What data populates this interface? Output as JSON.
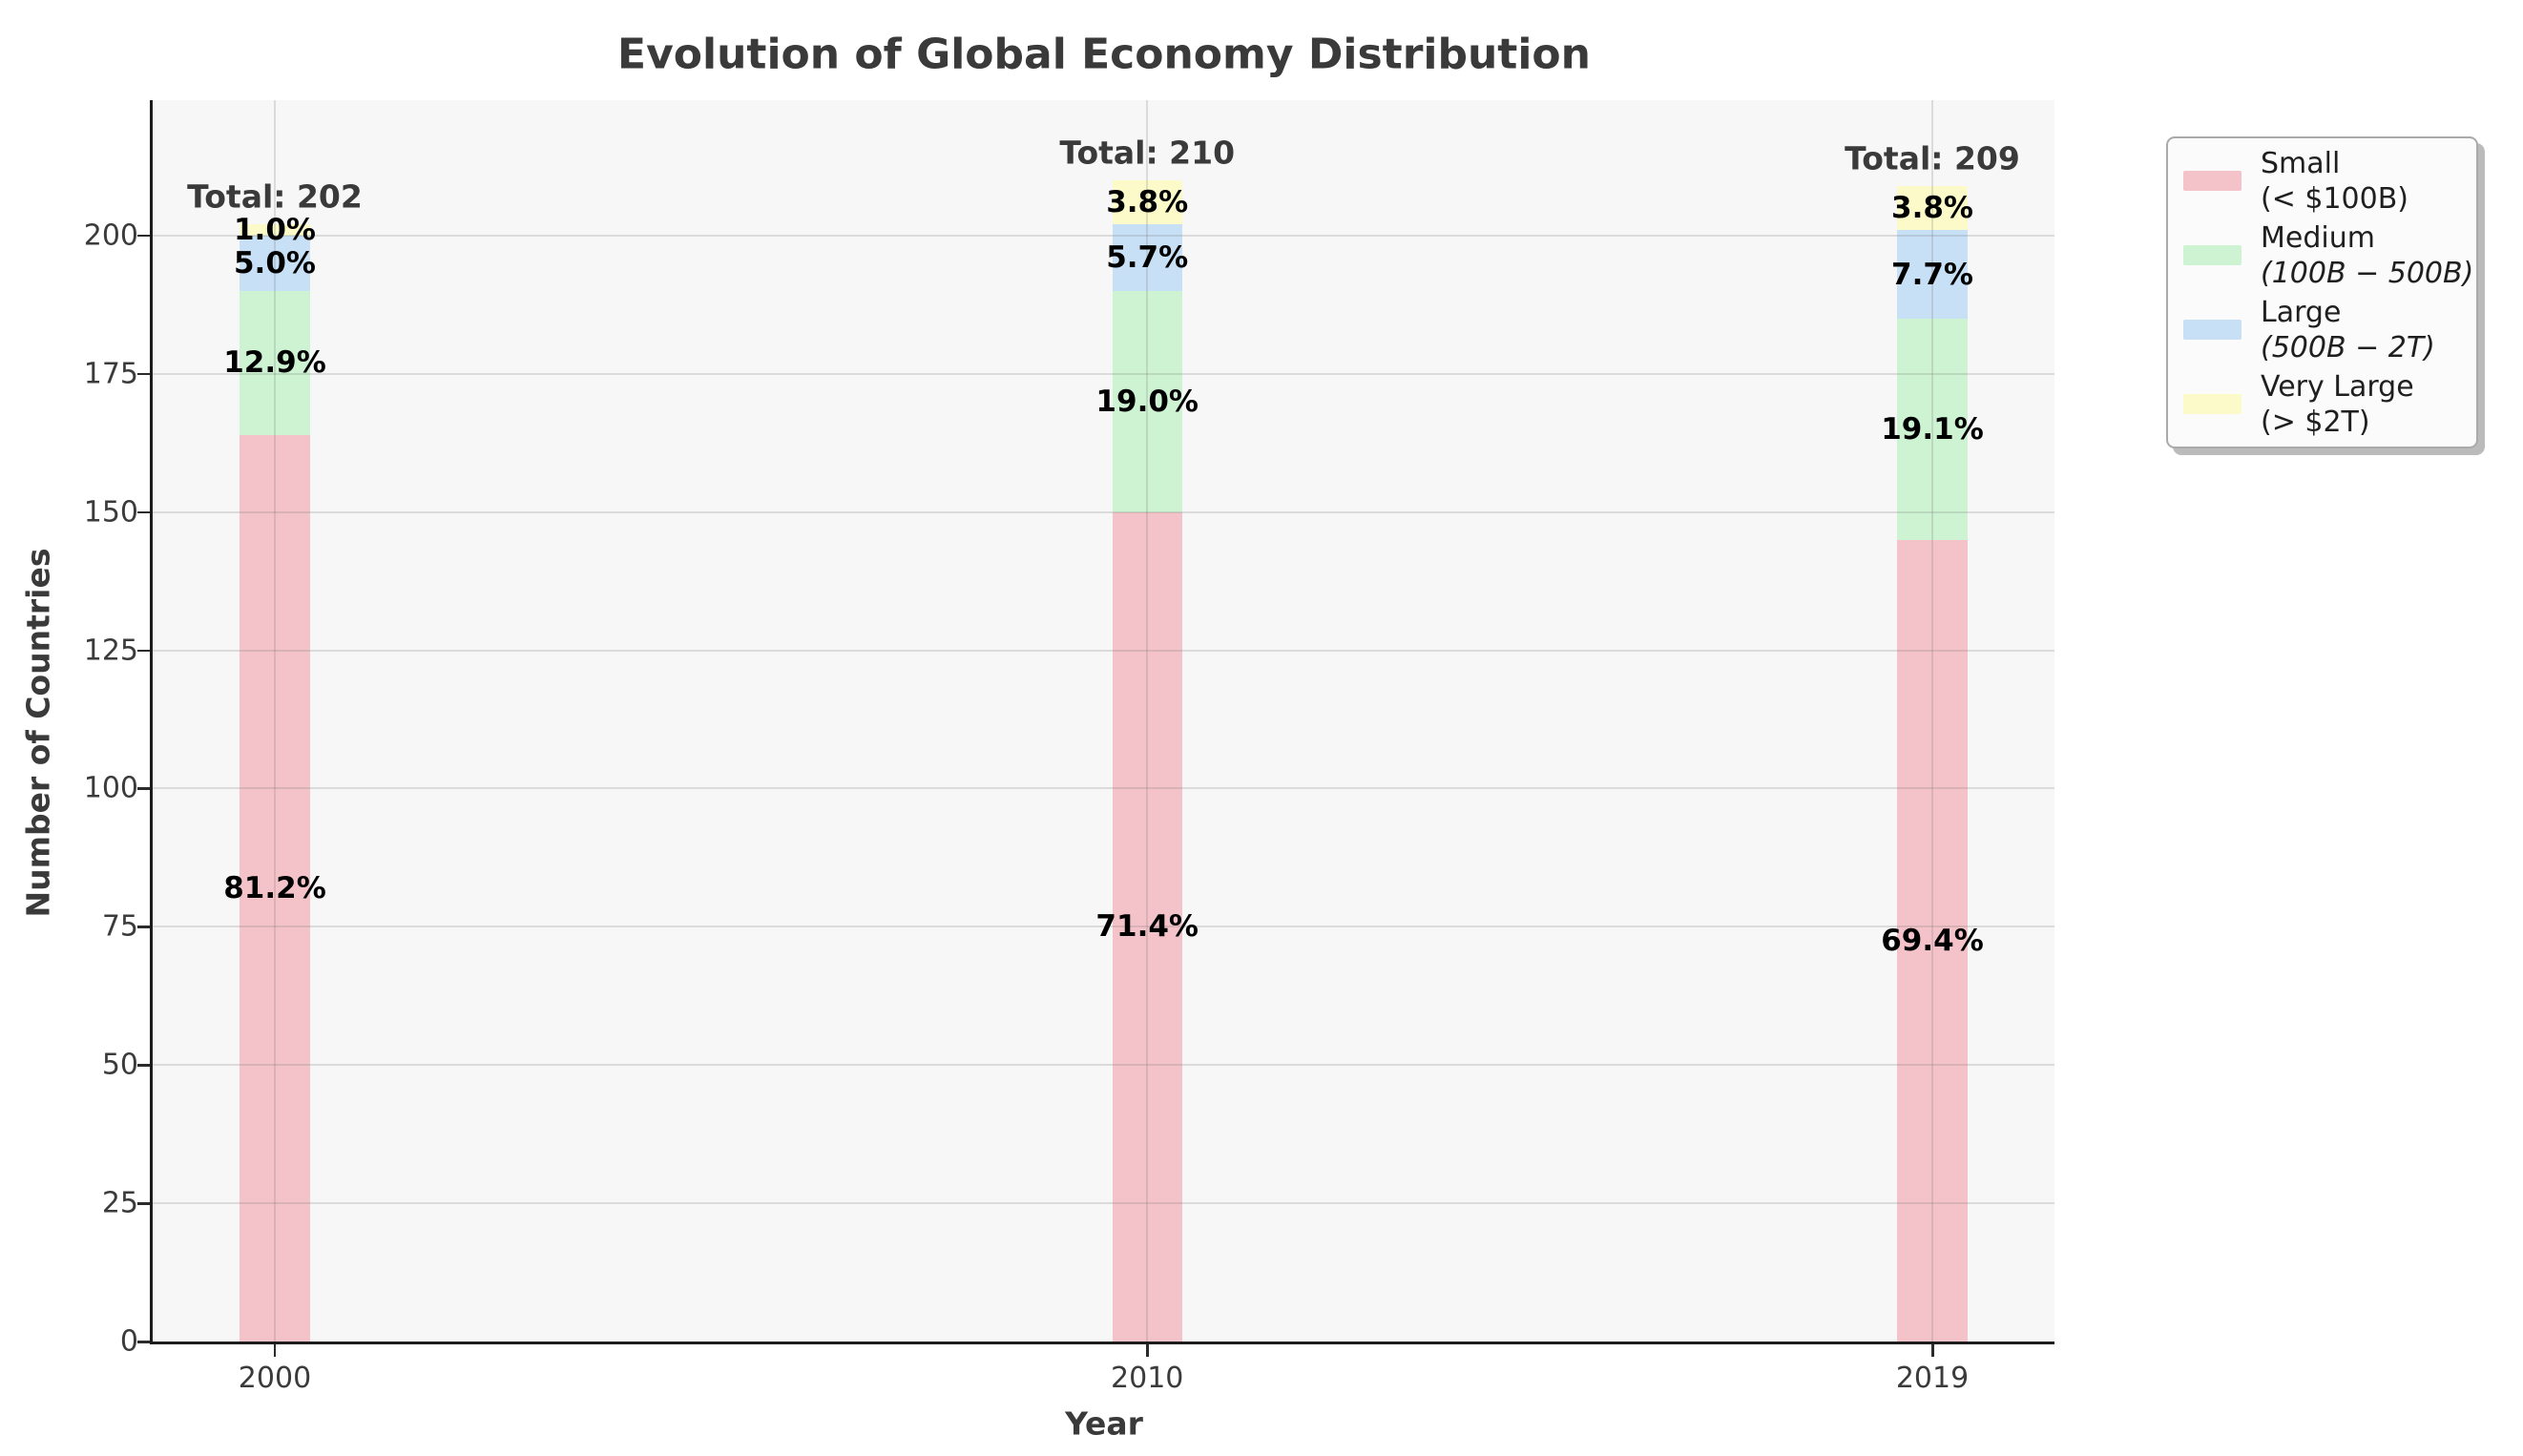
{
  "chart_data": {
    "type": "bar",
    "subtype": "stacked",
    "title": "Evolution of Global Economy Distribution",
    "xlabel": "Year",
    "ylabel": "Number of Countries",
    "categories": [
      2000,
      2010,
      2019
    ],
    "totals": [
      202,
      210,
      209
    ],
    "total_label_prefix": "Total: ",
    "yticks": [
      0,
      25,
      50,
      75,
      100,
      125,
      150,
      175,
      200
    ],
    "ylim": [
      0,
      224.5
    ],
    "xlim": [
      1998.6,
      2020.4
    ],
    "bar_width_years": 0.8,
    "grid": true,
    "legend_position": "outside-upper-right",
    "series": [
      {
        "name": "Small",
        "range_label": "(< $100B)",
        "range_italic": false,
        "color": "#f4c3c9",
        "values": [
          164,
          150,
          145
        ],
        "pct_labels": [
          "81.2%",
          "71.4%",
          "69.4%"
        ]
      },
      {
        "name": "Medium",
        "range_label": "(100B − 500B)",
        "range_italic": true,
        "color": "#cdf3d3",
        "values": [
          26,
          40,
          40
        ],
        "pct_labels": [
          "12.9%",
          "19.0%",
          "19.1%"
        ]
      },
      {
        "name": "Large",
        "range_label": "(500B − 2T)",
        "range_italic": true,
        "color": "#c8e0f6",
        "values": [
          10,
          12,
          16
        ],
        "pct_labels": [
          "5.0%",
          "5.7%",
          "7.7%"
        ]
      },
      {
        "name": "Very Large",
        "range_label": "(> $2T)",
        "range_italic": false,
        "color": "#fbfac8",
        "values": [
          2,
          8,
          8
        ],
        "pct_labels": [
          "1.0%",
          "3.8%",
          "3.8%"
        ]
      }
    ]
  }
}
